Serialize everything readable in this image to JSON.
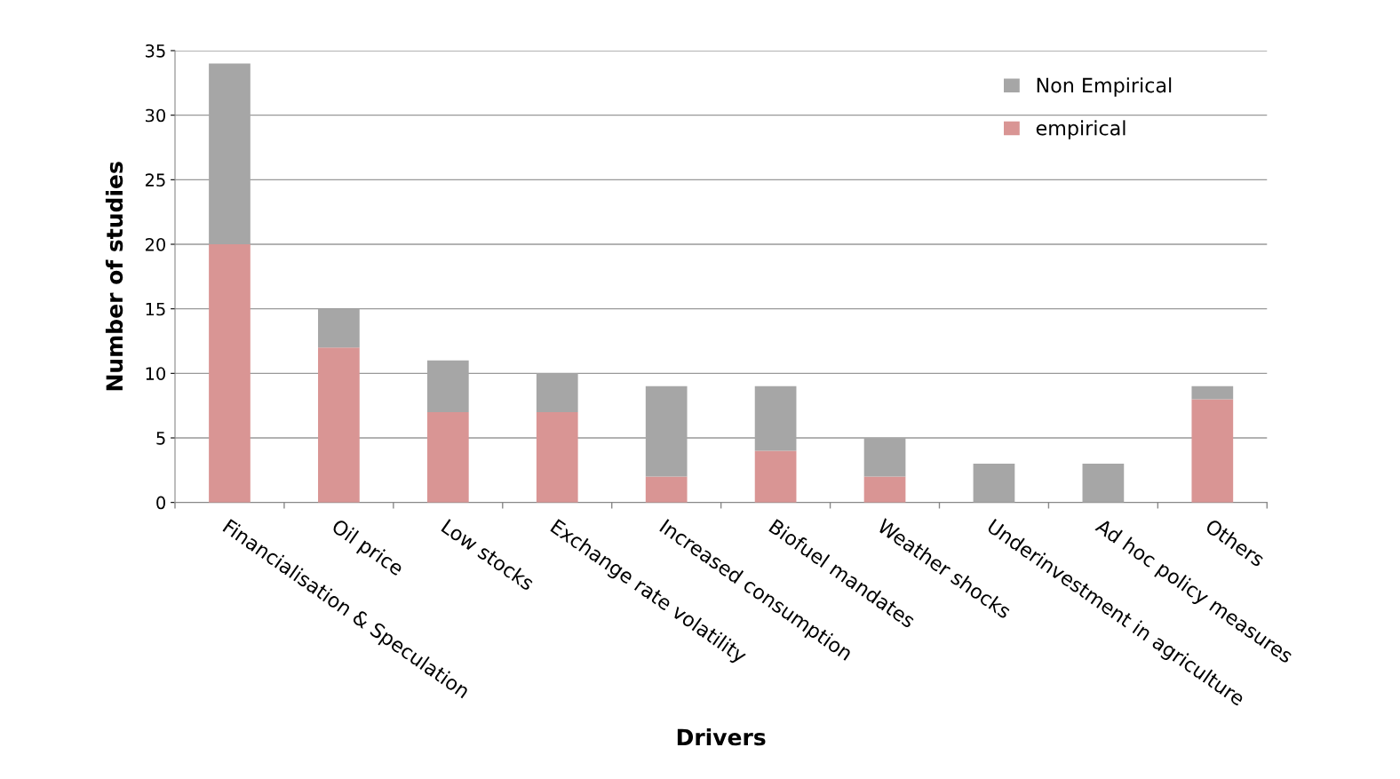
{
  "chart_data": {
    "type": "bar",
    "stacked": true,
    "xlabel": "Drivers",
    "ylabel": "Number of studies",
    "categories": [
      "Financialisation & Speculation",
      "Oil price",
      "Low stocks",
      "Exchange rate volatility",
      "Increased consumption",
      "Biofuel mandates",
      "Weather shocks",
      "Underinvestment in agriculture",
      "Ad hoc policy measures",
      "Others"
    ],
    "series": [
      {
        "name": "empirical",
        "color": "#d99594",
        "values": [
          20,
          12,
          7,
          7,
          2,
          4,
          2,
          0,
          0,
          8
        ]
      },
      {
        "name": "Non Empirical",
        "color": "#a6a6a6",
        "values": [
          14,
          3,
          4,
          3,
          7,
          5,
          3,
          3,
          3,
          1
        ]
      }
    ],
    "ylim": [
      0,
      35
    ],
    "yticks": [
      0,
      5,
      10,
      15,
      20,
      25,
      30,
      35
    ],
    "grid": "y",
    "legend": "top right"
  }
}
